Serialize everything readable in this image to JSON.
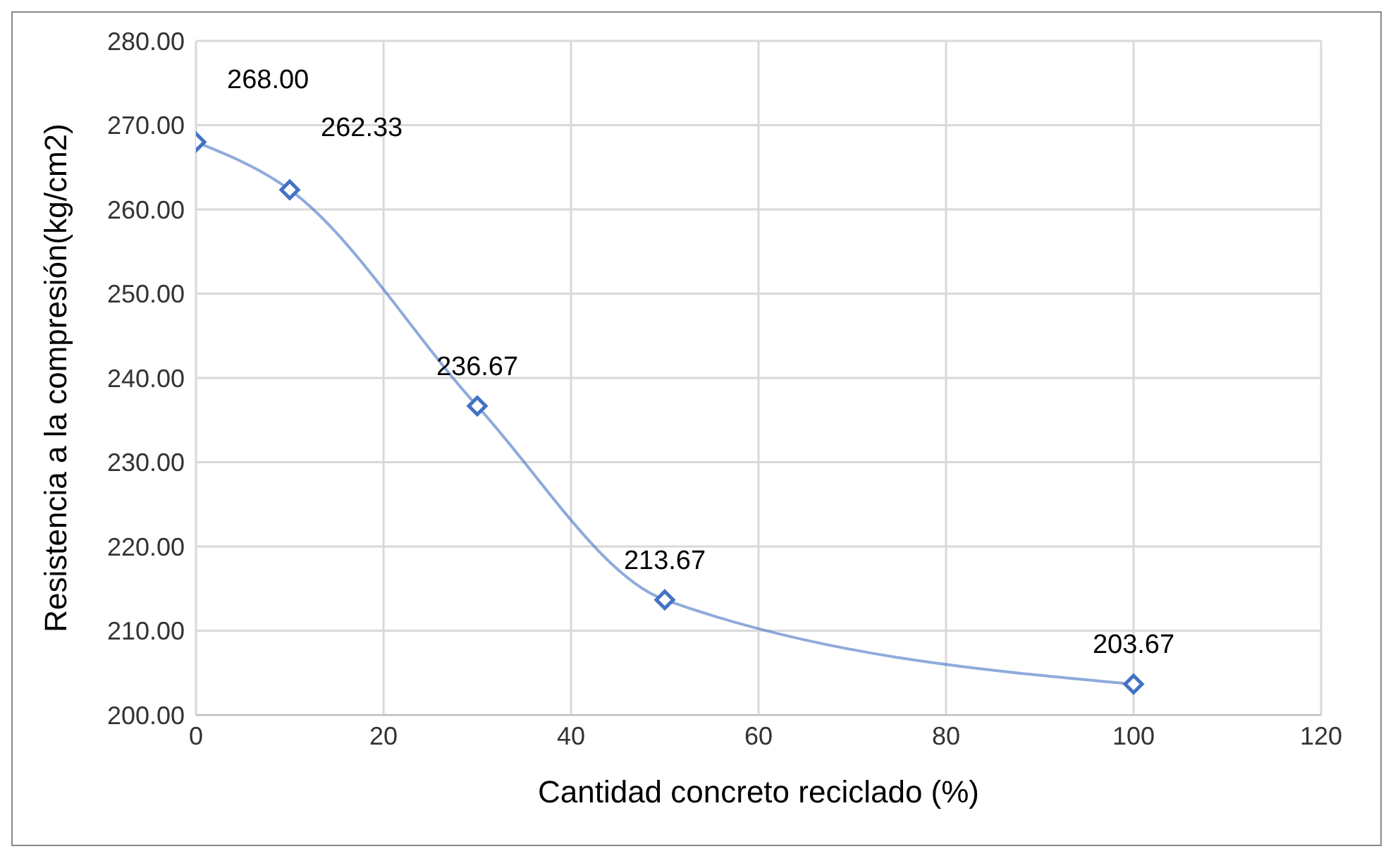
{
  "chart_data": {
    "type": "line",
    "xlabel": "Cantidad concreto reciclado (%)",
    "ylabel": "Resistencia a la compresión(kg/cm2)",
    "x": [
      0,
      10,
      30,
      50,
      100
    ],
    "series": [
      {
        "color": "#4472c4",
        "values": [
          268,
          262.33,
          236.67,
          213.67,
          203.67
        ],
        "value_labels": [
          "268.00",
          "262.33",
          "236.67",
          "213.67",
          "203.67"
        ]
      }
    ],
    "xlim": [
      0,
      120
    ],
    "xticks": [
      0,
      20,
      40,
      60,
      80,
      100,
      120
    ],
    "ylim": [
      200,
      280
    ],
    "yticks": [
      {
        "value": 200,
        "label": "200.00"
      },
      {
        "value": 210,
        "label": "210.00"
      },
      {
        "value": 220,
        "label": "220.00"
      },
      {
        "value": 230,
        "label": "230.00"
      },
      {
        "value": 240,
        "label": "240.00"
      },
      {
        "value": 250,
        "label": "250.00"
      },
      {
        "value": 260,
        "label": "260.00"
      },
      {
        "value": 270,
        "label": "270.00"
      },
      {
        "value": 280,
        "label": "280.00"
      }
    ],
    "grid": true,
    "marker": "diamond",
    "line_style": "solid",
    "legend": false
  }
}
